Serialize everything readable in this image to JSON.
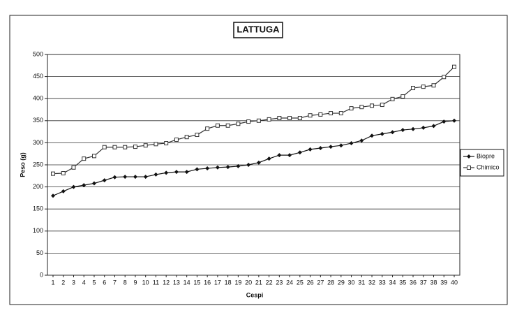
{
  "chart_data": {
    "type": "line",
    "title": "LATTUGA",
    "x_label": "Cespi",
    "y_label": "Peso (g)",
    "categories": [
      "1",
      "2",
      "3",
      "4",
      "5",
      "6",
      "7",
      "8",
      "9",
      "10",
      "11",
      "12",
      "13",
      "14",
      "15",
      "16",
      "17",
      "18",
      "19",
      "20",
      "21",
      "22",
      "23",
      "24",
      "25",
      "26",
      "27",
      "28",
      "29",
      "30",
      "31",
      "32",
      "33",
      "34",
      "35",
      "36",
      "37",
      "38",
      "39",
      "40"
    ],
    "series": [
      {
        "name": "Biopre",
        "color": "#111111",
        "marker": "diamond",
        "values": [
          180,
          190,
          200,
          204,
          208,
          215,
          222,
          223,
          223,
          223,
          228,
          232,
          234,
          234,
          240,
          242,
          244,
          245,
          247,
          250,
          255,
          264,
          272,
          272,
          278,
          285,
          288,
          291,
          294,
          299,
          305,
          316,
          320,
          324,
          329,
          331,
          334,
          338,
          348,
          350
        ]
      },
      {
        "name": "Chimico",
        "color": "#333333",
        "marker": "square",
        "values": [
          230,
          231,
          244,
          264,
          270,
          290,
          290,
          290,
          291,
          294,
          297,
          299,
          307,
          313,
          318,
          332,
          339,
          339,
          343,
          348,
          350,
          353,
          356,
          356,
          356,
          362,
          364,
          367,
          367,
          378,
          381,
          384,
          386,
          399,
          405,
          424,
          427,
          430,
          449,
          472
        ]
      }
    ],
    "ylim": [
      0,
      500
    ],
    "yticks": [
      0,
      50,
      100,
      150,
      200,
      250,
      300,
      350,
      400,
      450,
      500
    ],
    "grid": true,
    "legend": "right"
  }
}
